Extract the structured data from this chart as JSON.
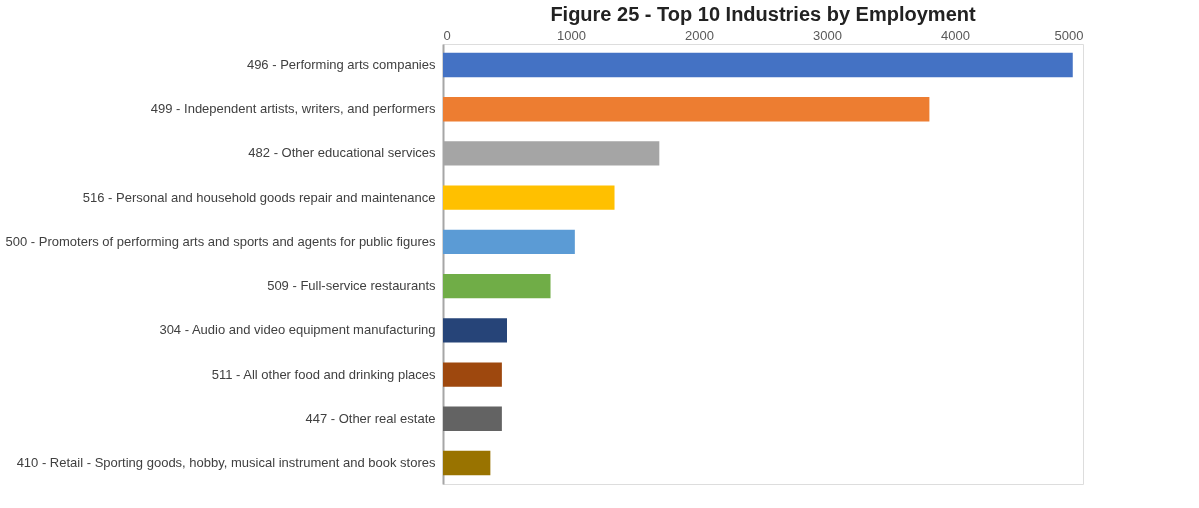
{
  "chart_data": {
    "type": "bar",
    "orientation": "horizontal",
    "title": "Figure 25 - Top 10 Industries by Employment",
    "categories": [
      "496 - Performing arts companies",
      "499 - Independent artists, writers, and performers",
      "482 - Other educational services",
      "516 - Personal and household goods repair and maintenance",
      "500 - Promoters of performing arts and sports and agents for public figures",
      "509 - Full-service restaurants",
      "304 - Audio and video equipment manufacturing",
      "511 - All other food and drinking places",
      "447 - Other real estate",
      "410 - Retail - Sporting goods, hobby, musical instrument and book stores"
    ],
    "values": [
      4920,
      3800,
      1690,
      1340,
      1030,
      840,
      500,
      460,
      460,
      370
    ],
    "colors": [
      "#4472c4",
      "#ed7d31",
      "#a5a5a5",
      "#ffc000",
      "#5b9bd5",
      "#70ad47",
      "#264478",
      "#9e480e",
      "#636363",
      "#997300"
    ],
    "xlim": [
      0,
      5000
    ],
    "xticks": [
      0,
      1000,
      2000,
      3000,
      4000,
      5000
    ],
    "grid": false
  }
}
